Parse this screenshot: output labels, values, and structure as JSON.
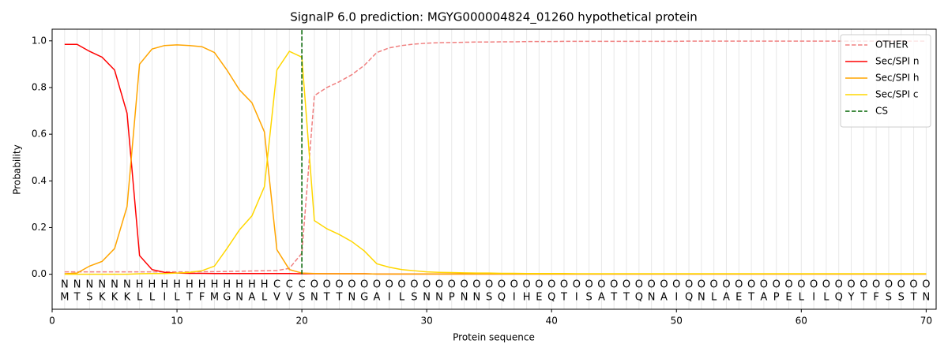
{
  "chart_data": {
    "type": "line",
    "title": "SignalP 6.0 prediction: MGYG000004824_01260 hypothetical protein",
    "x_label": "Protein sequence",
    "y_label": "Probability",
    "xlim": [
      0,
      70.8
    ],
    "ylim": [
      -0.15,
      1.05
    ],
    "xticks": [
      0,
      10,
      20,
      30,
      40,
      50,
      60,
      70
    ],
    "yticks": [
      {
        "value": 0,
        "label": "0.0"
      },
      {
        "value": 0.2,
        "label": "0.2"
      },
      {
        "value": 0.4,
        "label": "0.4"
      },
      {
        "value": 0.6,
        "label": "0.6"
      },
      {
        "value": 0.8,
        "label": "0.8"
      },
      {
        "value": 1.0,
        "label": "1.0"
      }
    ],
    "legend": "upper right",
    "x": [
      1,
      2,
      3,
      4,
      5,
      6,
      7,
      8,
      9,
      10,
      11,
      12,
      13,
      14,
      15,
      16,
      17,
      18,
      19,
      20,
      21,
      22,
      23,
      24,
      25,
      26,
      27,
      28,
      29,
      30,
      31,
      32,
      33,
      34,
      35,
      36,
      37,
      38,
      39,
      40,
      41,
      42,
      43,
      44,
      45,
      46,
      47,
      48,
      49,
      50,
      51,
      52,
      53,
      54,
      55,
      56,
      57,
      58,
      59,
      60,
      61,
      62,
      63,
      64,
      65,
      66,
      67,
      68,
      69,
      70
    ],
    "sequence": [
      "M",
      "T",
      "S",
      "K",
      "K",
      "K",
      "L",
      "L",
      "I",
      "L",
      "T",
      "F",
      "M",
      "G",
      "N",
      "A",
      "L",
      "V",
      "V",
      "S",
      "N",
      "T",
      "T",
      "N",
      "G",
      "A",
      "I",
      "L",
      "S",
      "N",
      "N",
      "P",
      "N",
      "N",
      "S",
      "Q",
      "I",
      "H",
      "E",
      "Q",
      "T",
      "I",
      "S",
      "A",
      "T",
      "T",
      "Q",
      "N",
      "A",
      "I",
      "Q",
      "N",
      "L",
      "A",
      "E",
      "T",
      "A",
      "P",
      "E",
      "L",
      "I",
      "L",
      "Q",
      "Y",
      "T",
      "F",
      "S",
      "S",
      "T",
      "N"
    ],
    "labels": [
      "N",
      "N",
      "N",
      "N",
      "N",
      "N",
      "H",
      "H",
      "H",
      "H",
      "H",
      "H",
      "H",
      "H",
      "H",
      "H",
      "H",
      "C",
      "C",
      "C",
      "O",
      "O",
      "O",
      "O",
      "O",
      "O",
      "O",
      "O",
      "O",
      "O",
      "O",
      "O",
      "O",
      "O",
      "O",
      "O",
      "O",
      "O",
      "O",
      "O",
      "O",
      "O",
      "O",
      "O",
      "O",
      "O",
      "O",
      "O",
      "O",
      "O",
      "O",
      "O",
      "O",
      "O",
      "O",
      "O",
      "O",
      "O",
      "O",
      "O",
      "O",
      "O",
      "O",
      "O",
      "O",
      "O",
      "O",
      "O",
      "O",
      "O"
    ],
    "label_colors": {
      "N": "#ff0000",
      "H": "#ffa500",
      "C": "#ffd700",
      "O": "#808080"
    },
    "series": [
      {
        "name": "OTHER",
        "color": "#f08080",
        "dashed": true,
        "values": [
          0.01,
          0.01,
          0.01,
          0.01,
          0.01,
          0.01,
          0.01,
          0.01,
          0.01,
          0.01,
          0.01,
          0.011,
          0.011,
          0.012,
          0.013,
          0.014,
          0.015,
          0.016,
          0.025,
          0.09,
          0.765,
          0.8,
          0.825,
          0.855,
          0.895,
          0.95,
          0.97,
          0.98,
          0.986,
          0.99,
          0.992,
          0.993,
          0.994,
          0.995,
          0.995,
          0.996,
          0.996,
          0.997,
          0.997,
          0.997,
          0.998,
          0.998,
          0.998,
          0.998,
          0.998,
          0.998,
          0.998,
          0.998,
          0.998,
          0.998,
          0.999,
          0.999,
          0.999,
          0.999,
          0.999,
          0.999,
          0.999,
          0.999,
          0.999,
          0.999,
          0.999,
          0.999,
          0.999,
          0.999,
          0.999,
          0.999,
          0.999,
          0.999,
          0.999,
          0.999
        ]
      },
      {
        "name": "Sec/SPI n",
        "color": "#ff0000",
        "dashed": false,
        "values": [
          0.985,
          0.985,
          0.955,
          0.93,
          0.875,
          0.69,
          0.08,
          0.02,
          0.008,
          0.005,
          0.004,
          0.004,
          0.003,
          0.003,
          0.003,
          0.003,
          0.003,
          0.003,
          0.003,
          0.002,
          0.002,
          0.002,
          0.002,
          0.002,
          0.002,
          0.001,
          0.001,
          0.001,
          0.001,
          0.001,
          0.001,
          0.001,
          0.001,
          0.001,
          0.001,
          0.001,
          0.001,
          0.001,
          0.001,
          0.001,
          0.001,
          0.001,
          0.001,
          0.001,
          0.001,
          0.001,
          0.001,
          0.001,
          0.001,
          0.001,
          0.001,
          0.001,
          0.001,
          0.001,
          0.001,
          0.001,
          0.001,
          0.001,
          0.001,
          0.001,
          0.001,
          0.001,
          0.001,
          0.001,
          0.001,
          0.001,
          0.001,
          0.001,
          0.001,
          0.001
        ]
      },
      {
        "name": "Sec/SPI h",
        "color": "#ffa500",
        "dashed": false,
        "values": [
          0.002,
          0.005,
          0.035,
          0.055,
          0.11,
          0.29,
          0.9,
          0.965,
          0.98,
          0.983,
          0.98,
          0.975,
          0.95,
          0.875,
          0.79,
          0.735,
          0.61,
          0.105,
          0.02,
          0.005,
          0.003,
          0.002,
          0.002,
          0.002,
          0.002,
          0.001,
          0.001,
          0.001,
          0.001,
          0.001,
          0.001,
          0.001,
          0.001,
          0.001,
          0.001,
          0.001,
          0.001,
          0.001,
          0.001,
          0.001,
          0.001,
          0.001,
          0.001,
          0.001,
          0.001,
          0.001,
          0.001,
          0.001,
          0.001,
          0.001,
          0.001,
          0.001,
          0.001,
          0.001,
          0.001,
          0.001,
          0.001,
          0.001,
          0.001,
          0.001,
          0.001,
          0.001,
          0.001,
          0.001,
          0.001,
          0.001,
          0.001,
          0.001,
          0.001,
          0.001
        ]
      },
      {
        "name": "Sec/SPI c",
        "color": "#ffd700",
        "dashed": false,
        "values": [
          0,
          0,
          0,
          0,
          0,
          0,
          0.002,
          0.003,
          0.003,
          0.005,
          0.008,
          0.015,
          0.035,
          0.11,
          0.19,
          0.25,
          0.375,
          0.875,
          0.955,
          0.93,
          0.23,
          0.195,
          0.17,
          0.14,
          0.1,
          0.045,
          0.03,
          0.02,
          0.015,
          0.01,
          0.008,
          0.007,
          0.006,
          0.005,
          0.005,
          0.004,
          0.004,
          0.003,
          0.003,
          0.003,
          0.003,
          0.002,
          0.002,
          0.002,
          0.002,
          0.002,
          0.002,
          0.002,
          0.002,
          0.002,
          0.002,
          0.002,
          0.002,
          0.002,
          0.002,
          0.002,
          0.002,
          0.002,
          0.002,
          0.002,
          0.002,
          0.002,
          0.002,
          0.002,
          0.002,
          0.002,
          0.002,
          0.002,
          0.002,
          0.002
        ]
      }
    ],
    "cs": {
      "name": "CS",
      "color": "#006400",
      "position": 20
    }
  }
}
